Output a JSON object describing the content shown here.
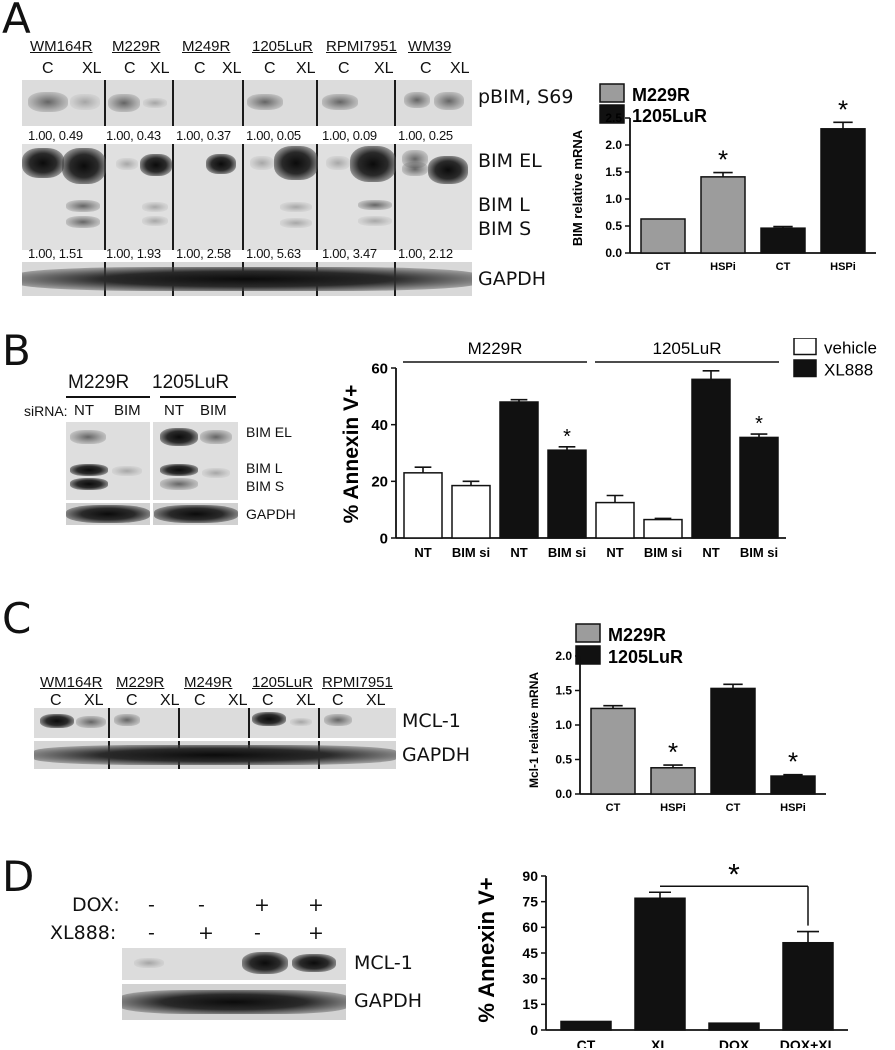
{
  "panel_A": {
    "letter": "A",
    "cell_lines": [
      "WM164R",
      "M229R",
      "M249R",
      "1205LuR",
      "RPMI7951",
      "WM39"
    ],
    "lane_labels": [
      "C",
      "XL"
    ],
    "band_labels": {
      "pbim": "pBIM, S69",
      "bim_el": "BIM EL",
      "bim_l": "BIM L",
      "bim_s": "BIM S",
      "gapdh": "GAPDH"
    },
    "pbim_quant": [
      "1.00, 0.49",
      "1.00, 0.43",
      "1.00, 0.37",
      "1.00, 0.05",
      "1.00, 0.09",
      "1.00, 0.25"
    ],
    "bim_quant": [
      "1.00, 1.51",
      "1.00, 1.93",
      "1.00, 2.58",
      "1.00, 5.63",
      "1.00, 3.47",
      "1.00,  2.12"
    ]
  },
  "panel_B": {
    "letter": "B",
    "blot_cell_lines": [
      "M229R",
      "1205LuR"
    ],
    "sirna_label": "siRNA:",
    "sirna_lanes": [
      "NT",
      "BIM"
    ],
    "band_labels": {
      "bim_el": "BIM EL",
      "bim_l": "BIM L",
      "bim_s": "BIM S",
      "gapdh": "GAPDH"
    }
  },
  "panel_C": {
    "letter": "C",
    "cell_lines": [
      "WM164R",
      "M229R",
      "M249R",
      "1205LuR",
      "RPMI7951"
    ],
    "lane_labels": [
      "C",
      "XL"
    ],
    "band_labels": {
      "mcl1": "MCL-1",
      "gapdh": "GAPDH"
    }
  },
  "panel_D": {
    "letter": "D",
    "rows": [
      {
        "label": "DOX:",
        "values": [
          "-",
          "-",
          "+",
          "+"
        ]
      },
      {
        "label": "XL888:",
        "values": [
          "-",
          "+",
          "-",
          "+"
        ]
      }
    ],
    "band_labels": {
      "mcl1": "MCL-1",
      "gapdh": "GAPDH"
    }
  },
  "chart_data": [
    {
      "id": "A-right",
      "type": "bar",
      "categories": [
        "CT",
        "HSPi",
        "CT",
        "HSPi"
      ],
      "values": [
        0.63,
        1.41,
        0.46,
        2.3
      ],
      "errors": [
        0,
        0.08,
        0.03,
        0.12
      ],
      "colors": [
        "#9c9c9c",
        "#9c9c9c",
        "#111111",
        "#111111"
      ],
      "significant": [
        false,
        true,
        false,
        true
      ],
      "legend": [
        {
          "name": "M229R",
          "color": "#9c9c9c"
        },
        {
          "name": "1205LuR",
          "color": "#111111"
        }
      ],
      "ylabel": "BIM relative mRNA",
      "ylim": [
        0,
        2.5
      ],
      "yticks": [
        "0.0",
        "0.5",
        "1.0",
        "1.5",
        "2.0",
        "2.5"
      ],
      "star": "*"
    },
    {
      "id": "B-right",
      "type": "bar",
      "categories": [
        "NT",
        "BIM si",
        "NT",
        "BIM si",
        "NT",
        "BIM si",
        "NT",
        "BIM si"
      ],
      "values": [
        23,
        18.5,
        48,
        31,
        12.5,
        6.5,
        56,
        35.5
      ],
      "errors": [
        2,
        1.5,
        0.8,
        1.2,
        2.5,
        0.4,
        3,
        1.2
      ],
      "colors": [
        "#ffffff",
        "#ffffff",
        "#111111",
        "#111111",
        "#ffffff",
        "#ffffff",
        "#111111",
        "#111111"
      ],
      "significant": [
        false,
        false,
        false,
        true,
        false,
        false,
        false,
        true
      ],
      "groups": [
        {
          "name": "M229R"
        },
        {
          "name": "1205LuR"
        }
      ],
      "legend": [
        {
          "name": "vehicle",
          "color": "#ffffff"
        },
        {
          "name": "XL888",
          "color": "#111111"
        }
      ],
      "ylabel": "% Annexin V+",
      "ylim": [
        0,
        60
      ],
      "yticks": [
        "0",
        "20",
        "40",
        "60"
      ],
      "star": "*"
    },
    {
      "id": "C-right",
      "type": "bar",
      "categories": [
        "CT",
        "HSPi",
        "CT",
        "HSPi"
      ],
      "values": [
        1.24,
        0.38,
        1.53,
        0.26
      ],
      "errors": [
        0.04,
        0.04,
        0.06,
        0.02
      ],
      "colors": [
        "#9c9c9c",
        "#9c9c9c",
        "#111111",
        "#111111"
      ],
      "significant": [
        false,
        true,
        false,
        true
      ],
      "legend": [
        {
          "name": "M229R",
          "color": "#9c9c9c"
        },
        {
          "name": "1205LuR",
          "color": "#111111"
        }
      ],
      "ylabel": "Mcl-1 relative mRNA",
      "ylim": [
        0,
        2.0
      ],
      "yticks": [
        "0.0",
        "0.5",
        "1.0",
        "1.5",
        "2.0"
      ],
      "star": "*"
    },
    {
      "id": "D-right",
      "type": "bar",
      "categories": [
        "CT",
        "XL",
        "DOX",
        "DOX+XL"
      ],
      "values": [
        5,
        77,
        4,
        51
      ],
      "errors": [
        0,
        3.5,
        0,
        6.5
      ],
      "colors": [
        "#111111",
        "#111111",
        "#111111",
        "#111111"
      ],
      "significant": [
        false,
        false,
        false,
        false
      ],
      "bracket": {
        "from": 1,
        "to": 3,
        "label": "*"
      },
      "ylabel": "% Annexin V+",
      "ylim": [
        0,
        90
      ],
      "yticks": [
        "0",
        "15",
        "30",
        "45",
        "60",
        "75",
        "90"
      ]
    }
  ]
}
